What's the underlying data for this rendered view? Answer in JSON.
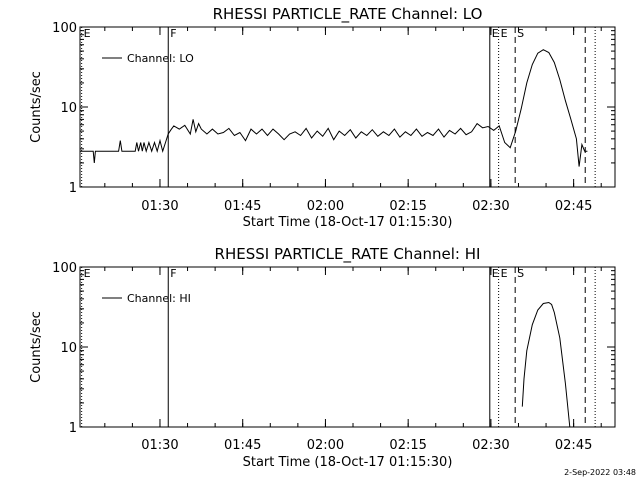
{
  "footer_date": "2-Sep-2022 03:48",
  "chart_data": [
    {
      "type": "line",
      "title": "RHESSI PARTICLE_RATE Channel: LO",
      "xlabel": "Start Time (18-Oct-17 01:15:30)",
      "ylabel": "Counts/sec",
      "y_scale": "log",
      "ylim": [
        1,
        100
      ],
      "y_ticks": [
        {
          "value": 1,
          "label": "1"
        },
        {
          "value": 10,
          "label": "10"
        },
        {
          "value": 100,
          "label": "100"
        }
      ],
      "x_unit": "minutes after 01:15:30",
      "xlim": [
        0,
        97
      ],
      "x_ticks": [
        {
          "value": 14.5,
          "label": "01:30"
        },
        {
          "value": 29.5,
          "label": "01:45"
        },
        {
          "value": 44.5,
          "label": "02:00"
        },
        {
          "value": 59.5,
          "label": "02:15"
        },
        {
          "value": 74.5,
          "label": "02:30"
        },
        {
          "value": 89.5,
          "label": "02:45"
        }
      ],
      "legend": {
        "label": "Channel: LO",
        "position": "top-left"
      },
      "markers": [
        {
          "label": "E",
          "x": 0.3,
          "style": "dotted"
        },
        {
          "label": "F",
          "x": 16.0,
          "style": "solid"
        },
        {
          "label": "E",
          "x": 74.3,
          "style": "solid"
        },
        {
          "label": "E",
          "x": 75.9,
          "style": "dotted"
        },
        {
          "label": "S",
          "x": 78.9,
          "style": "dashed"
        },
        {
          "label": "",
          "x": 91.6,
          "style": "dashed"
        },
        {
          "label": "",
          "x": 93.4,
          "style": "dotted"
        }
      ],
      "series": [
        {
          "name": "Channel: LO",
          "x": [
            0,
            2.4,
            2.6,
            2.8,
            3.0,
            5,
            7,
            7.3,
            7.6,
            8,
            10,
            10.3,
            10.6,
            11,
            11.3,
            11.6,
            12,
            12.5,
            13,
            13.5,
            14,
            14.5,
            15,
            15.5,
            16,
            16.5,
            17,
            18,
            19,
            20,
            20.5,
            21,
            21.5,
            22,
            23,
            24,
            25,
            26,
            27,
            28,
            29,
            30,
            31,
            32,
            33,
            34,
            35,
            36,
            37,
            38,
            39,
            40,
            41,
            42,
            43,
            44,
            45,
            46,
            47,
            48,
            49,
            50,
            51,
            52,
            53,
            54,
            55,
            56,
            57,
            58,
            59,
            60,
            61,
            62,
            63,
            64,
            65,
            66,
            67,
            68,
            69,
            70,
            71,
            72,
            73,
            74,
            75,
            76,
            77,
            78,
            79,
            80,
            81,
            82,
            83,
            84,
            85,
            86,
            87,
            88,
            89,
            90,
            90.5,
            91,
            91.5,
            92
          ],
          "y": [
            2.8,
            2.8,
            2.0,
            2.8,
            2.8,
            2.8,
            2.8,
            3.8,
            2.8,
            2.8,
            2.8,
            3.6,
            2.8,
            3.6,
            2.8,
            3.6,
            2.8,
            3.6,
            2.8,
            3.6,
            2.8,
            3.8,
            2.8,
            3.6,
            4.6,
            5.2,
            5.8,
            5.3,
            5.9,
            4.6,
            7.0,
            4.9,
            6.2,
            5.3,
            4.6,
            5.3,
            4.6,
            4.8,
            5.4,
            4.4,
            4.8,
            3.8,
            5.3,
            4.6,
            5.3,
            4.4,
            5.3,
            4.6,
            3.9,
            4.6,
            4.9,
            4.4,
            5.4,
            4.1,
            5.0,
            4.3,
            5.4,
            3.9,
            5.0,
            4.4,
            5.2,
            4.1,
            4.9,
            4.4,
            5.2,
            4.3,
            4.9,
            4.4,
            5.3,
            4.2,
            4.9,
            4.4,
            5.3,
            4.3,
            4.8,
            4.4,
            5.3,
            4.2,
            5.1,
            4.6,
            5.4,
            4.5,
            4.9,
            6.2,
            5.5,
            5.7,
            5.1,
            5.8,
            3.6,
            3.1,
            5.0,
            9.5,
            20,
            34,
            47,
            52,
            48,
            36,
            22,
            12,
            7,
            4.0,
            1.8,
            3.4,
            2.8,
            2.8
          ]
        }
      ]
    },
    {
      "type": "line",
      "title": "RHESSI PARTICLE_RATE Channel: HI",
      "xlabel": "Start Time (18-Oct-17 01:15:30)",
      "ylabel": "Counts/sec",
      "y_scale": "log",
      "ylim": [
        1,
        100
      ],
      "y_ticks": [
        {
          "value": 1,
          "label": "1"
        },
        {
          "value": 10,
          "label": "10"
        },
        {
          "value": 100,
          "label": "100"
        }
      ],
      "x_unit": "minutes after 01:15:30",
      "xlim": [
        0,
        97
      ],
      "x_ticks": [
        {
          "value": 14.5,
          "label": "01:30"
        },
        {
          "value": 29.5,
          "label": "01:45"
        },
        {
          "value": 44.5,
          "label": "02:00"
        },
        {
          "value": 59.5,
          "label": "02:15"
        },
        {
          "value": 74.5,
          "label": "02:30"
        },
        {
          "value": 89.5,
          "label": "02:45"
        }
      ],
      "legend": {
        "label": "Channel: HI",
        "position": "top-left"
      },
      "markers": [
        {
          "label": "E",
          "x": 0.3,
          "style": "dotted"
        },
        {
          "label": "F",
          "x": 16.0,
          "style": "solid"
        },
        {
          "label": "E",
          "x": 74.3,
          "style": "solid"
        },
        {
          "label": "E",
          "x": 75.9,
          "style": "dotted"
        },
        {
          "label": "S",
          "x": 78.9,
          "style": "dashed"
        },
        {
          "label": "",
          "x": 91.6,
          "style": "dashed"
        },
        {
          "label": "",
          "x": 93.4,
          "style": "dotted"
        }
      ],
      "series": [
        {
          "name": "Channel: HI",
          "x": [
            80.2,
            80.5,
            81,
            82,
            83,
            84,
            85,
            85.5,
            86,
            87,
            88,
            88.8
          ],
          "y": [
            1.8,
            4.0,
            9.0,
            19,
            29,
            35,
            36,
            34,
            27,
            13,
            3.5,
            1.0
          ]
        }
      ]
    }
  ]
}
